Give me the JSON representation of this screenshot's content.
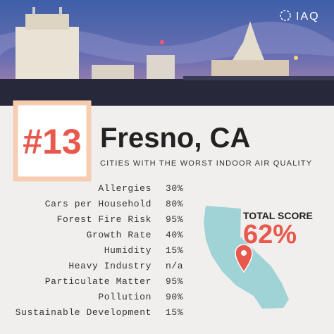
{
  "logo": "IAQ",
  "rank": "#13",
  "city": "Fresno, CA",
  "subtitle": "CITIES WITH THE WORST INDOOR AIR QUALITY",
  "factors": [
    {
      "label": "Allergies",
      "value": "30%"
    },
    {
      "label": "Cars per Household",
      "value": "80%"
    },
    {
      "label": "Forest Fire Risk",
      "value": "95%"
    },
    {
      "label": "Growth Rate",
      "value": "40%"
    },
    {
      "label": "Humidity",
      "value": "15%"
    },
    {
      "label": "Heavy Industry",
      "value": "n/a"
    },
    {
      "label": "Particulate Matter",
      "value": "95%"
    },
    {
      "label": "Pollution",
      "value": "90%"
    },
    {
      "label": "Sustainable Development",
      "value": "15%"
    }
  ],
  "total_score": {
    "label": "TOTAL SCORE",
    "value": "62%"
  }
}
